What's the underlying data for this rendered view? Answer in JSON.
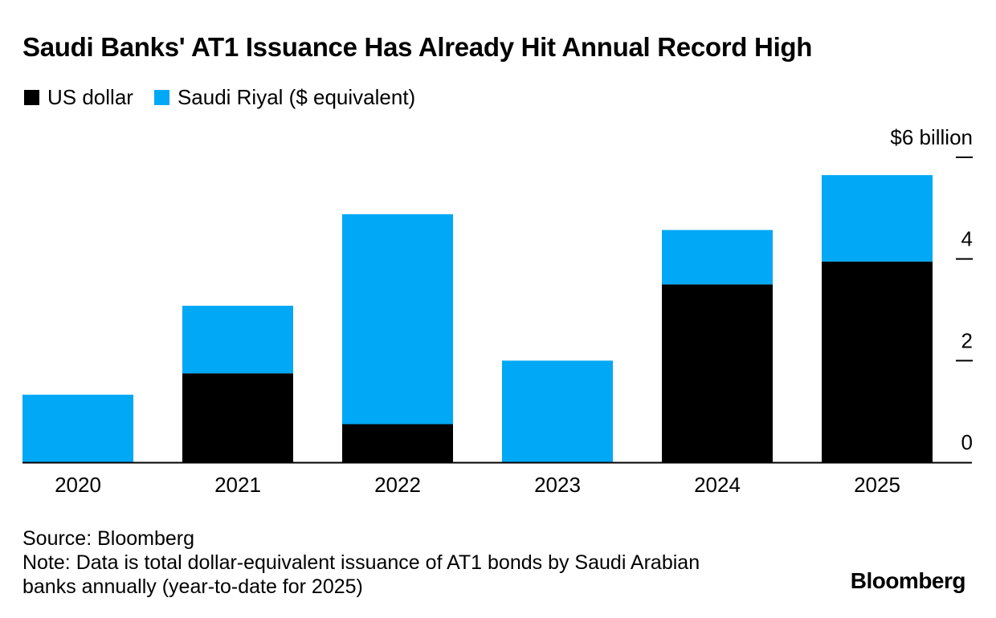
{
  "chart_data": {
    "type": "bar",
    "stacked": true,
    "title": "Saudi Banks' AT1 Issuance Has Already Hit Annual Record High",
    "categories": [
      "2020",
      "2021",
      "2022",
      "2023",
      "2024",
      "2025"
    ],
    "series": [
      {
        "name": "US dollar",
        "color": "#000000",
        "values": [
          0,
          1.75,
          0.75,
          0,
          3.5,
          3.95
        ]
      },
      {
        "name": "Saudi Riyal ($ equivalent)",
        "color": "#00a8f5",
        "values": [
          1.33,
          1.33,
          4.13,
          2.0,
          1.07,
          1.7
        ]
      }
    ],
    "ylim": [
      0,
      6
    ],
    "yticks": [
      0,
      2,
      4,
      6
    ],
    "ytick_labels": [
      "0",
      "2",
      "4",
      "$6 billion"
    ],
    "y_axis_position": "right",
    "legend_position": "top-left"
  },
  "footer": {
    "source": "Source: Bloomberg",
    "note_line1": "Note: Data is total dollar-equivalent issuance of AT1 bonds by Saudi Arabian",
    "note_line2": "banks annually (year-to-date for 2025)"
  },
  "brand": "Bloomberg"
}
